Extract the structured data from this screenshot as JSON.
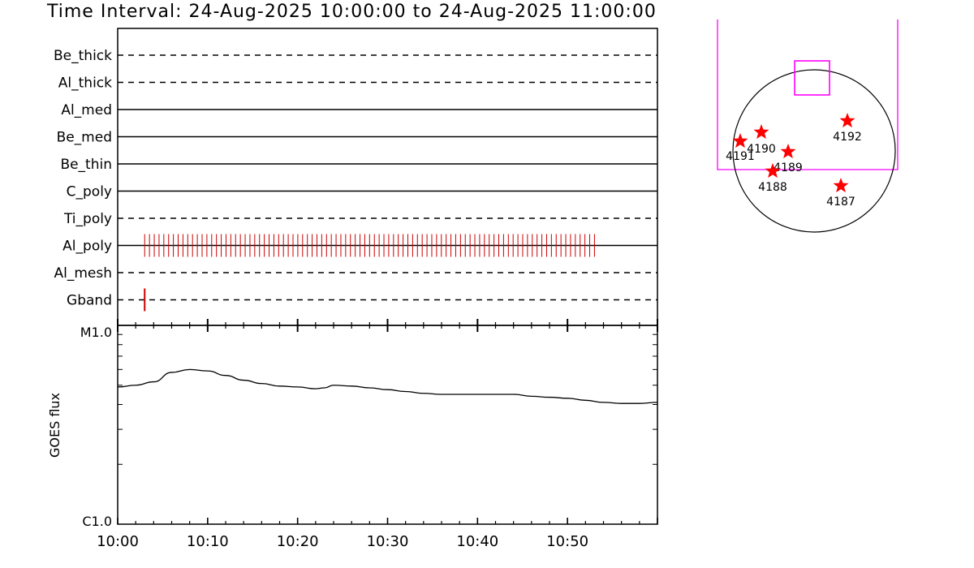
{
  "chart_data": [
    {
      "type": "timeline",
      "title": "Time Interval: 24-Aug-2025 10:00:00 to 24-Aug-2025 11:00:00",
      "time_range": [
        "10:00",
        "11:00"
      ],
      "x_tick_labels": [
        "10:00",
        "10:10",
        "10:20",
        "10:30",
        "10:40",
        "10:50"
      ],
      "channels": [
        {
          "name": "Be_thick",
          "style": "dashed",
          "events": []
        },
        {
          "name": "Al_thick",
          "style": "dashed",
          "events": []
        },
        {
          "name": "Al_med",
          "style": "solid",
          "events": []
        },
        {
          "name": "Be_med",
          "style": "solid",
          "events": []
        },
        {
          "name": "Be_thin",
          "style": "solid",
          "events": []
        },
        {
          "name": "C_poly",
          "style": "solid",
          "events": []
        },
        {
          "name": "Ti_poly",
          "style": "dashed",
          "events": []
        },
        {
          "name": "Al_poly",
          "style": "solid",
          "event_range_minutes": [
            3.0,
            53.0
          ],
          "event_count": 95
        },
        {
          "name": "Al_mesh",
          "style": "dashed",
          "events": []
        },
        {
          "name": "Gband",
          "style": "dashed",
          "events": [
            3.0
          ]
        }
      ],
      "event_color": "#cc0000"
    },
    {
      "type": "line",
      "ylabel": "GOES flux",
      "y_scale": "log",
      "y_tick_labels": [
        "M1.0",
        "C1.0"
      ],
      "ylim": [
        "C1.0",
        "M1.0"
      ],
      "x_tick_labels": [
        "10:00",
        "10:10",
        "10:20",
        "10:30",
        "10:40",
        "10:50"
      ],
      "series": [
        {
          "x_minutes": [
            0,
            2,
            4,
            6,
            8,
            10,
            12,
            14,
            16,
            18,
            20,
            22,
            23,
            24,
            26,
            28,
            30,
            32,
            34,
            36,
            38,
            40,
            42,
            44,
            46,
            48,
            50,
            52,
            54,
            56,
            58,
            60
          ],
          "flux_class": [
            "C4.9",
            "C5.0",
            "C5.2",
            "C5.8",
            "C6.0",
            "C5.9",
            "C5.6",
            "C5.3",
            "C5.1",
            "C4.95",
            "C4.9",
            "C4.8",
            "C4.85",
            "C5.0",
            "C4.95",
            "C4.85",
            "C4.75",
            "C4.65",
            "C4.55",
            "C4.5",
            "C4.5",
            "C4.5",
            "C4.5",
            "C4.5",
            "C4.4",
            "C4.35",
            "C4.3",
            "C4.2",
            "C4.1",
            "C4.05",
            "C4.05",
            "C4.1"
          ]
        }
      ]
    },
    {
      "type": "scatter",
      "label": "solar disk map",
      "active_regions": [
        {
          "label": "4192"
        },
        {
          "label": "4190"
        },
        {
          "label": "4191"
        },
        {
          "label": "4189"
        },
        {
          "label": "4188"
        },
        {
          "label": "4187"
        }
      ],
      "marker_color": "#ff0000",
      "fov_color": "#ff00ff"
    }
  ]
}
